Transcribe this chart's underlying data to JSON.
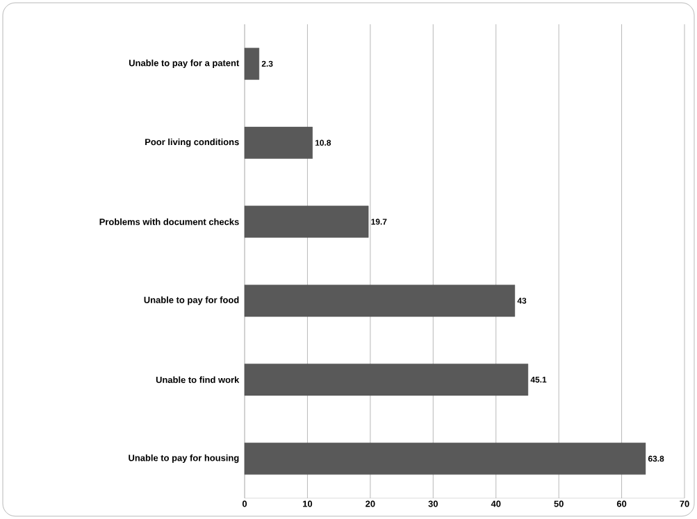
{
  "chart_data": {
    "type": "bar",
    "orientation": "horizontal",
    "categories": [
      "Unable to pay for a patent",
      "Poor living conditions",
      "Problems with document checks",
      "Unable to pay for food",
      "Unable to find work",
      "Unable to pay for housing"
    ],
    "values": [
      2.3,
      10.8,
      19.7,
      43,
      45.1,
      63.8
    ],
    "color": "#595959",
    "xlim": [
      0,
      70
    ],
    "xticks": [
      0,
      10,
      20,
      30,
      40,
      50,
      60,
      70
    ],
    "grid": "x",
    "data_labels": true
  }
}
